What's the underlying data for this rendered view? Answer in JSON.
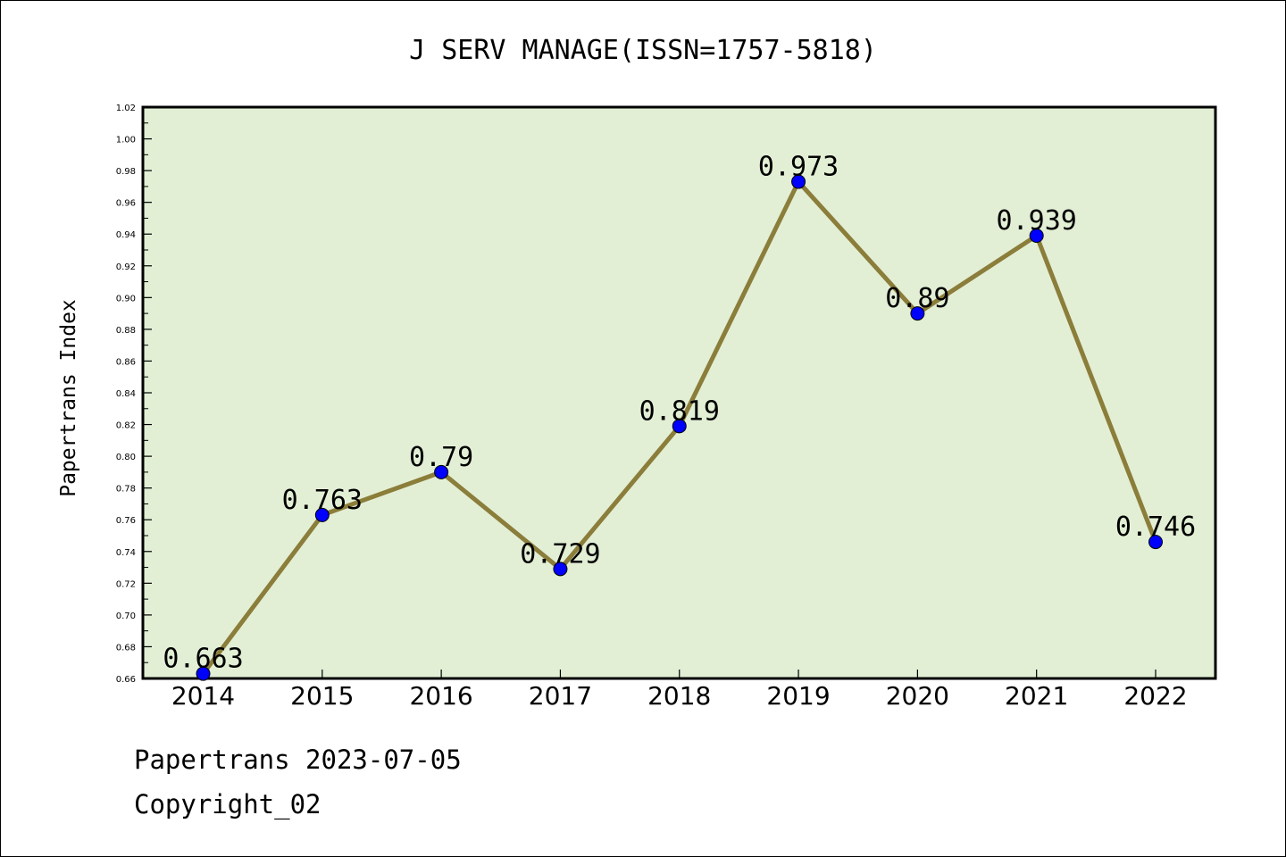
{
  "chart_data": {
    "type": "line",
    "title": "J SERV MANAGE(ISSN=1757-5818)",
    "ylabel": "Papertrans Index",
    "xlabel": "",
    "categories": [
      "2014",
      "2015",
      "2016",
      "2017",
      "2018",
      "2019",
      "2020",
      "2021",
      "2022"
    ],
    "series": [
      {
        "values": [
          0.663,
          0.763,
          0.79,
          0.729,
          0.819,
          0.973,
          0.89,
          0.939,
          0.746
        ],
        "labels": [
          "0.663",
          "0.763",
          "0.79",
          "0.729",
          "0.819",
          "0.973",
          "0.89",
          "0.939",
          "0.746"
        ]
      }
    ],
    "ylim": [
      0.66,
      1.02
    ],
    "yticks": [
      "0.66",
      "0.68",
      "0.70",
      "0.72",
      "0.74",
      "0.76",
      "0.78",
      "0.80",
      "0.82",
      "0.84",
      "0.86",
      "0.88",
      "0.90",
      "0.92",
      "0.94",
      "0.96",
      "0.98",
      "1.00",
      "1.02"
    ],
    "grid": false,
    "colors": {
      "plot_bg": "#e2efd5",
      "line": "#8b7d3a",
      "marker": "#0000ff"
    }
  },
  "footer": {
    "line1": "Papertrans 2023-07-05",
    "line2": "Copyright_02"
  }
}
